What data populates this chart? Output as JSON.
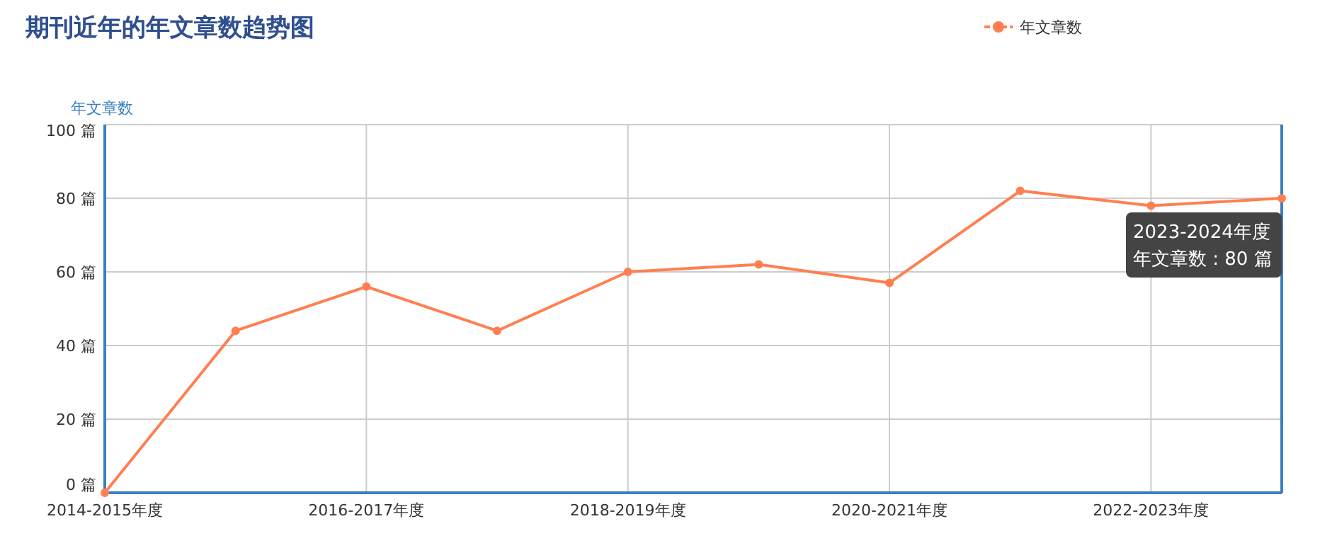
{
  "chart_data": {
    "type": "line",
    "title": "期刊近年的年文章数趋势图",
    "ylabel": "年文章数",
    "categories": [
      "2014-2015年度",
      null,
      "2016-2017年度",
      null,
      "2018-2019年度",
      null,
      "2020-2021年度",
      null,
      "2022-2023年度",
      null
    ],
    "series": [
      {
        "name": "年文章数",
        "color": "#ff7f50",
        "values": [
          0,
          44,
          56,
          44,
          60,
          62,
          57,
          82,
          78,
          80
        ]
      }
    ],
    "ylim": [
      0,
      100
    ],
    "yticks": [
      {
        "value": 0,
        "label": "0 篇"
      },
      {
        "value": 20,
        "label": "20 篇"
      },
      {
        "value": 40,
        "label": "40 篇"
      },
      {
        "value": 60,
        "label": "60 篇"
      },
      {
        "value": 80,
        "label": "80 篇"
      },
      {
        "value": 100,
        "label": "100 篇"
      }
    ],
    "annotations": [
      "2023-2024年度",
      "年文章数 : 80 篇"
    ],
    "grid": true,
    "legend": "top right",
    "marker": "circle",
    "line_style": "solid"
  }
}
